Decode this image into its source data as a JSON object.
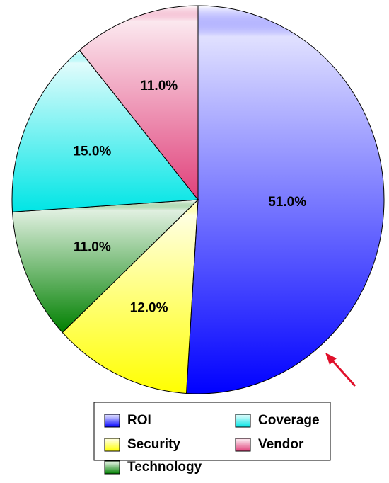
{
  "chart_data": {
    "type": "pie",
    "categories": [
      "ROI",
      "Security",
      "Technology",
      "Coverage",
      "Vendor"
    ],
    "values": [
      51,
      12,
      11,
      15,
      11
    ],
    "value_labels": [
      "51.0%",
      "12.0%",
      "11.0%",
      "15.0%",
      "11.0%"
    ],
    "colors": [
      "#0000ff",
      "#ffff00",
      "#008000",
      "#00e5e5",
      "#e0407a"
    ]
  }
}
